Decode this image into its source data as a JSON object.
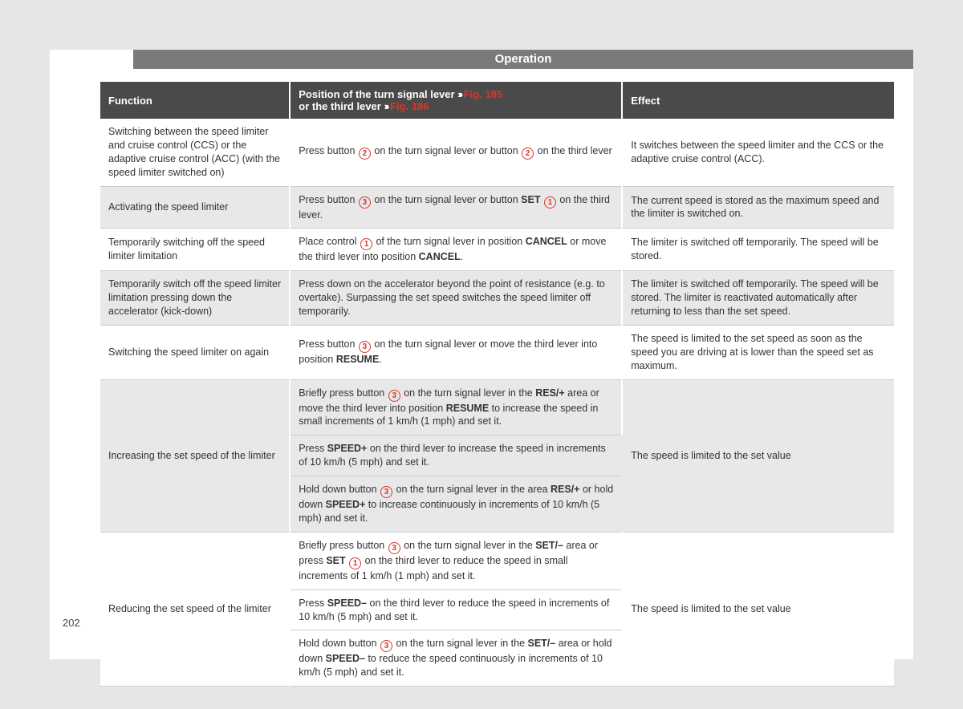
{
  "page_number": "202",
  "title": "Operation",
  "colors": {
    "page_bg": "#e6e6e6",
    "paper_bg": "#ffffff",
    "header_bar_bg": "#7a7a7a",
    "thead_bg": "#4a4a4a",
    "ref_accent": "#d9362a",
    "row_alt_bg": "#e8e8e8",
    "border": "#cccccc"
  },
  "header": {
    "col1": "Function",
    "col2_line1_pre": "Position of the turn signal lever ",
    "col2_line1_arrow": "›››",
    "col2_line1_ref": " Fig. 185",
    "col2_line2_pre": "or the third lever ",
    "col2_line2_arrow": "›››",
    "col2_line2_ref": " Fig. 186",
    "col3": "Effect"
  },
  "rows": [
    {
      "function": "Switching between the speed limiter and cruise control (CCS) or the adaptive cruise control (ACC) (with the speed limiter switched on)",
      "position_segments": [
        {
          "t": "Press button "
        },
        {
          "c": "2"
        },
        {
          "t": " on the turn signal lever or button "
        },
        {
          "c": "2"
        },
        {
          "t": " on the third lever"
        }
      ],
      "effect": "It switches between the speed limiter and the CCS or the adaptive cruise control (ACC)."
    },
    {
      "function": "Activating the speed limiter",
      "position_segments": [
        {
          "t": "Press button "
        },
        {
          "c": "3"
        },
        {
          "t": " on the turn signal lever or button "
        },
        {
          "b": "SET"
        },
        {
          "t": " "
        },
        {
          "c": "1"
        },
        {
          "t": " on the third lever."
        }
      ],
      "effect": "The current speed is stored as the maximum speed and the limiter is switched on."
    },
    {
      "function": "Temporarily switching off the speed limiter limitation",
      "position_segments": [
        {
          "t": "Place control "
        },
        {
          "c": "1"
        },
        {
          "t": " of the turn signal lever in position "
        },
        {
          "b": "CANCEL"
        },
        {
          "t": " or move the third lever into position "
        },
        {
          "b": "CANCEL"
        },
        {
          "t": "."
        }
      ],
      "effect": "The limiter is switched off temporarily. The speed will be stored."
    },
    {
      "function": "Temporarily switch off the speed limiter limitation pressing down the accelerator (kick-down)",
      "position_segments": [
        {
          "t": "Press down on the accelerator beyond the point of resistance (e.g. to overtake). Surpassing the set speed switches the speed limiter off temporarily."
        }
      ],
      "effect": "The limiter is switched off temporarily. The speed will be stored. The limiter is reactivated automatically after returning to less than the set speed."
    },
    {
      "function": "Switching the speed limiter on again",
      "position_segments": [
        {
          "t": "Press button "
        },
        {
          "c": "3"
        },
        {
          "t": " on the turn signal lever or move the third lever into position "
        },
        {
          "b": "RESUME"
        },
        {
          "t": "."
        }
      ],
      "effect": "The speed is limited to the set speed as soon as the speed you are driving at is lower than the speed set as maximum."
    },
    {
      "function": "Increasing the set speed of the limiter",
      "sub_positions": [
        [
          {
            "t": "Briefly press button "
          },
          {
            "c": "3"
          },
          {
            "t": " on the turn signal lever in the "
          },
          {
            "b": "RES/+"
          },
          {
            "t": " area or move the third lever into position "
          },
          {
            "b": "RESUME"
          },
          {
            "t": " to increase the speed in small increments of 1 km/h (1 mph) and set it."
          }
        ],
        [
          {
            "t": "Press "
          },
          {
            "b": "SPEED+"
          },
          {
            "t": " on the third lever to increase the speed in increments of 10 km/h (5 mph) and set it."
          }
        ],
        [
          {
            "t": "Hold down button "
          },
          {
            "c": "3"
          },
          {
            "t": " on the turn signal lever in the area "
          },
          {
            "b": "RES/+"
          },
          {
            "t": " or hold down "
          },
          {
            "b": "SPEED+"
          },
          {
            "t": " to increase continuously in increments of 10 km/h (5 mph) and set it."
          }
        ]
      ],
      "effect": "The speed is limited to the set value"
    },
    {
      "function": "Reducing the set speed of the limiter",
      "sub_positions": [
        [
          {
            "t": "Briefly press button "
          },
          {
            "c": "3"
          },
          {
            "t": " on the turn signal lever in the "
          },
          {
            "b": "SET/–"
          },
          {
            "t": " area or press "
          },
          {
            "b": "SET"
          },
          {
            "t": " "
          },
          {
            "c": "1"
          },
          {
            "t": " on the third lever to reduce the speed in small increments of 1 km/h (1 mph) and set it."
          }
        ],
        [
          {
            "t": "Press "
          },
          {
            "b": "SPEED–"
          },
          {
            "t": " on the third lever to reduce the speed in increments of 10 km/h (5 mph) and set it."
          }
        ],
        [
          {
            "t": "Hold down button "
          },
          {
            "c": "3"
          },
          {
            "t": " on the turn signal lever in the "
          },
          {
            "b": "SET/–"
          },
          {
            "t": " area or hold down "
          },
          {
            "b": "SPEED–"
          },
          {
            "t": " to reduce the speed continuously in increments of 10 km/h (5 mph) and set it."
          }
        ]
      ],
      "effect": "The speed is limited to the set value"
    }
  ]
}
